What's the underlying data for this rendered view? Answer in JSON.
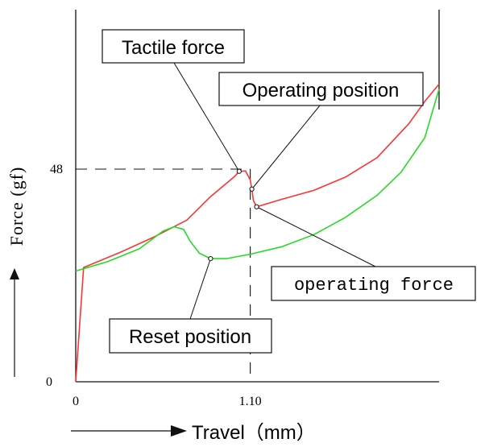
{
  "chart_data": {
    "type": "line",
    "xlabel": "Travel（mm）",
    "ylabel": "Force (gf)",
    "x_ticks": [
      {
        "value": 0,
        "label": "0"
      },
      {
        "value": 1.1,
        "label": "1.10"
      }
    ],
    "y_ticks": [
      {
        "value": 0,
        "label": "0"
      },
      {
        "value": 48,
        "label": "48"
      }
    ],
    "xlim": [
      0,
      2.29
    ],
    "ylim": [
      0,
      84
    ],
    "series": [
      {
        "color": "#ff3333",
        "points": [
          [
            0,
            0
          ],
          [
            0.05,
            25.8
          ],
          [
            0.28,
            29.2
          ],
          [
            0.5,
            32.8
          ],
          [
            0.7,
            36.5
          ],
          [
            0.85,
            41.8
          ],
          [
            1.0,
            46.3
          ],
          [
            1.03,
            47.5
          ],
          [
            1.07,
            47.6
          ],
          [
            1.1,
            45.6
          ],
          [
            1.11,
            43.5
          ],
          [
            1.12,
            40.9
          ],
          [
            1.14,
            39.5
          ],
          [
            1.3,
            41.2
          ],
          [
            1.5,
            43.2
          ],
          [
            1.7,
            46.2
          ],
          [
            1.9,
            50.6
          ],
          [
            2.1,
            58.3
          ],
          [
            2.2,
            63.3
          ],
          [
            2.29,
            67.2
          ]
        ]
      },
      {
        "color": "#22dd22",
        "points": [
          [
            0,
            25.0
          ],
          [
            0.2,
            27.1
          ],
          [
            0.4,
            30.0
          ],
          [
            0.55,
            34.0
          ],
          [
            0.62,
            35.0
          ],
          [
            0.68,
            34.4
          ],
          [
            0.72,
            31.8
          ],
          [
            0.78,
            29.0
          ],
          [
            0.85,
            27.8
          ],
          [
            0.95,
            27.8
          ],
          [
            1.1,
            28.8
          ],
          [
            1.3,
            30.5
          ],
          [
            1.5,
            33.2
          ],
          [
            1.7,
            37.1
          ],
          [
            1.9,
            42.1
          ],
          [
            2.05,
            47.3
          ],
          [
            2.2,
            55.1
          ],
          [
            2.29,
            66.1
          ]
        ]
      }
    ],
    "annotations": [
      {
        "label": "Tactile force",
        "point": [
          1.03,
          47.5
        ]
      },
      {
        "label": "Operating position",
        "point": [
          1.11,
          43.5
        ]
      },
      {
        "label": "operating force",
        "point": [
          1.14,
          39.5
        ]
      },
      {
        "label": "Reset position",
        "point": [
          0.85,
          27.8
        ]
      }
    ],
    "reference_lines": [
      {
        "orientation": "horizontal",
        "value": 48
      },
      {
        "orientation": "vertical",
        "value": 1.1
      }
    ]
  }
}
